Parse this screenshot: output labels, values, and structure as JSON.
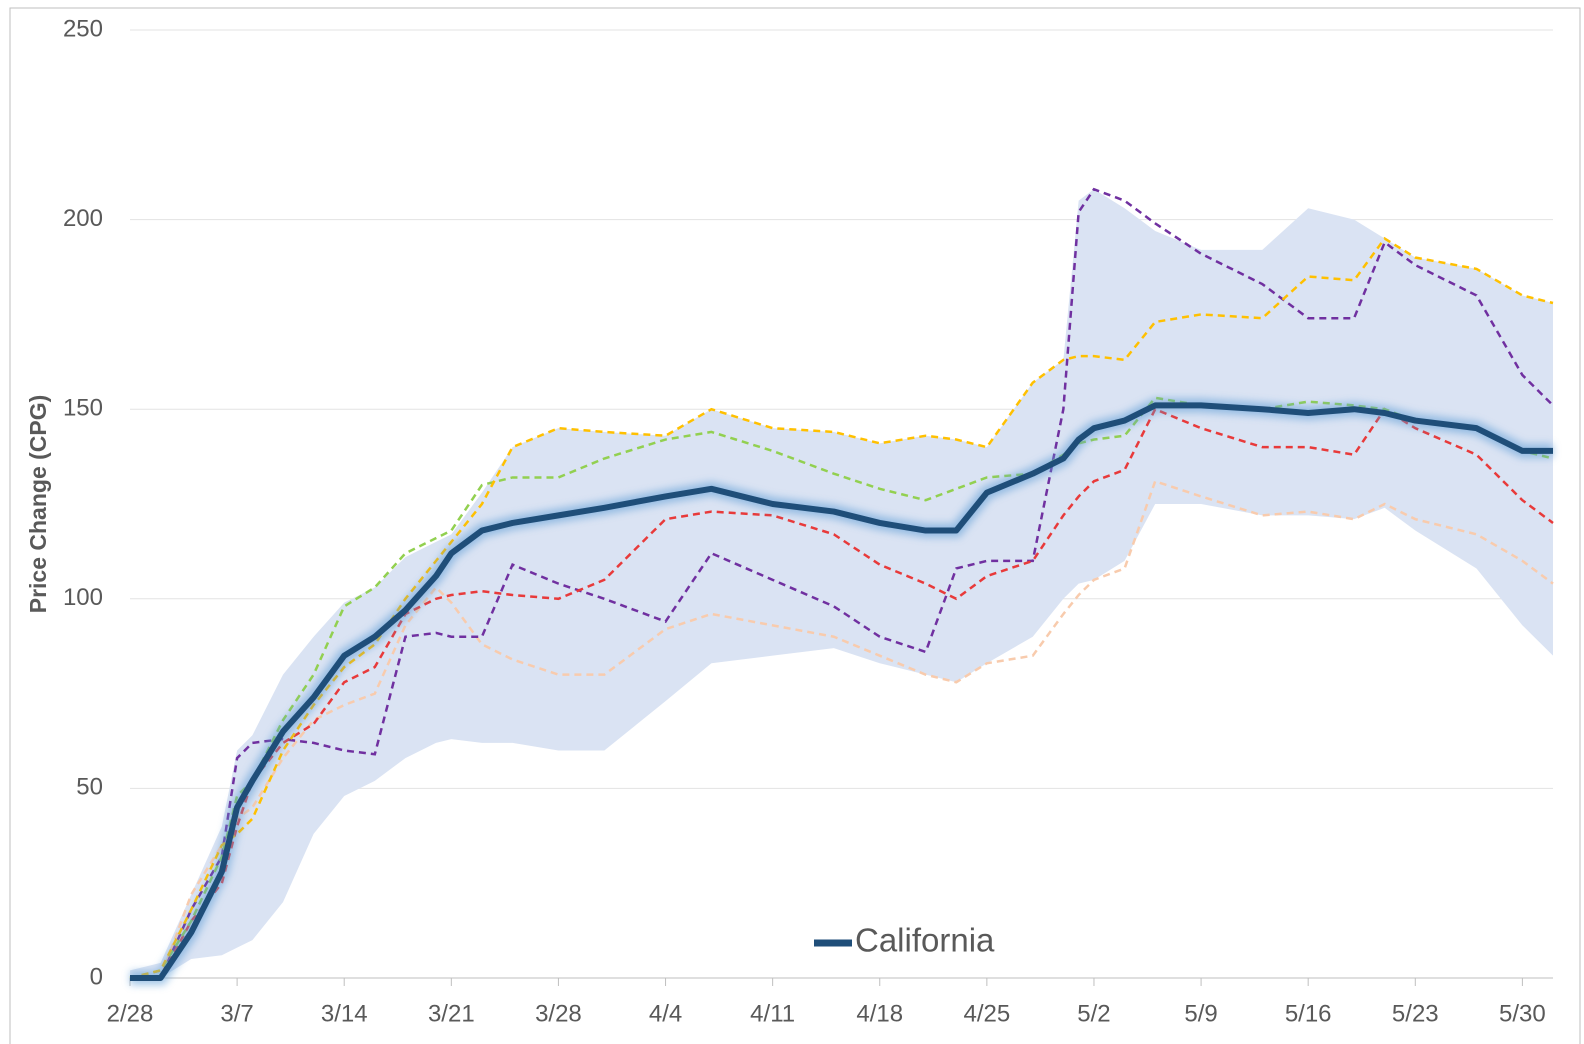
{
  "chart_data": {
    "type": "line",
    "ylabel": "Price Change (CPG)",
    "x": [
      0,
      2,
      4,
      6,
      7,
      8,
      10,
      12,
      14,
      16,
      18,
      20,
      21,
      23,
      25,
      28,
      31,
      35,
      38,
      42,
      46,
      49,
      52,
      54,
      56,
      59,
      61,
      62,
      63,
      65,
      67,
      70,
      74,
      77,
      80,
      82,
      84,
      88,
      91,
      93
    ],
    "xlim": [
      0,
      93
    ],
    "xticks": [
      {
        "value": 0,
        "label": "2/28"
      },
      {
        "value": 7,
        "label": "3/7"
      },
      {
        "value": 14,
        "label": "3/14"
      },
      {
        "value": 21,
        "label": "3/21"
      },
      {
        "value": 28,
        "label": "3/28"
      },
      {
        "value": 35,
        "label": "4/4"
      },
      {
        "value": 42,
        "label": "4/11"
      },
      {
        "value": 49,
        "label": "4/18"
      },
      {
        "value": 56,
        "label": "4/25"
      },
      {
        "value": 63,
        "label": "5/2"
      },
      {
        "value": 70,
        "label": "5/9"
      },
      {
        "value": 77,
        "label": "5/16"
      },
      {
        "value": 84,
        "label": "5/23"
      },
      {
        "value": 91,
        "label": "5/30"
      }
    ],
    "ylim": [
      0,
      250
    ],
    "yticks": [
      0,
      50,
      100,
      150,
      200,
      250
    ],
    "grid": true,
    "legend": "bottom",
    "band": {
      "color": "#dae3f3",
      "upper": [
        2,
        4,
        22,
        40,
        60,
        64,
        80,
        90,
        99,
        103,
        111,
        115,
        117,
        128,
        140,
        145,
        144,
        143,
        150,
        145,
        144,
        141,
        143,
        142,
        140,
        157,
        163,
        205,
        208,
        203,
        197,
        192,
        192,
        203,
        200,
        195,
        190,
        187,
        180,
        178
      ],
      "lower": [
        0,
        0,
        5,
        6,
        8,
        10,
        20,
        38,
        48,
        52,
        58,
        62,
        63,
        62,
        62,
        60,
        60,
        73,
        83,
        85,
        87,
        83,
        80,
        78,
        83,
        90,
        100,
        104,
        105,
        110,
        125,
        125,
        122,
        122,
        121,
        124,
        118,
        108,
        93,
        85
      ]
    },
    "series": [
      {
        "color": "#f8cbad",
        "values": [
          0,
          0,
          22,
          35,
          42,
          45,
          58,
          68,
          72,
          75,
          93,
          103,
          99,
          88,
          84,
          80,
          80,
          92,
          96,
          93,
          90,
          85,
          80,
          78,
          83,
          85,
          96,
          101,
          105,
          108,
          131,
          127,
          122,
          123,
          121,
          125,
          121,
          117,
          110,
          104
        ]
      },
      {
        "color": "#7030a0",
        "values": [
          0,
          0,
          18,
          32,
          58,
          62,
          63,
          62,
          60,
          59,
          90,
          91,
          90,
          90,
          109,
          104,
          100,
          94,
          112,
          105,
          98,
          90,
          86,
          108,
          110,
          110,
          150,
          202,
          208,
          205,
          199,
          191,
          183,
          174,
          174,
          194,
          188,
          180,
          159,
          151
        ]
      },
      {
        "color": "#e83a3a",
        "values": [
          0,
          0,
          15,
          25,
          40,
          52,
          62,
          67,
          78,
          82,
          96,
          100,
          101,
          102,
          101,
          100,
          105,
          121,
          123,
          122,
          117,
          109,
          104,
          100,
          106,
          110,
          122,
          127,
          131,
          134,
          150,
          145,
          140,
          140,
          138,
          150,
          145,
          138,
          126,
          120
        ]
      },
      {
        "color": "#92d050",
        "values": [
          0,
          2,
          15,
          32,
          48,
          52,
          68,
          80,
          98,
          103,
          112,
          116,
          118,
          130,
          132,
          132,
          137,
          142,
          144,
          139,
          133,
          129,
          126,
          129,
          132,
          133,
          138,
          141,
          142,
          143,
          153,
          151,
          150,
          152,
          151,
          150,
          147,
          145,
          139,
          137
        ]
      },
      {
        "color": "#ffc000",
        "values": [
          0,
          2,
          18,
          35,
          38,
          42,
          60,
          72,
          82,
          88,
          100,
          110,
          115,
          125,
          140,
          145,
          144,
          143,
          150,
          145,
          144,
          141,
          143,
          142,
          140,
          157,
          163,
          164,
          164,
          163,
          173,
          175,
          174,
          185,
          184,
          195,
          190,
          187,
          180,
          178
        ]
      },
      {
        "name": "California",
        "color": "#1f4e79",
        "values": [
          0,
          0,
          12,
          28,
          45,
          52,
          65,
          74,
          85,
          90,
          97,
          106,
          112,
          118,
          120,
          122,
          124,
          127,
          129,
          125,
          123,
          120,
          118,
          118,
          128,
          133,
          137,
          142,
          145,
          147,
          151,
          151,
          150,
          149,
          150,
          149,
          147,
          145,
          139,
          139
        ]
      }
    ]
  }
}
